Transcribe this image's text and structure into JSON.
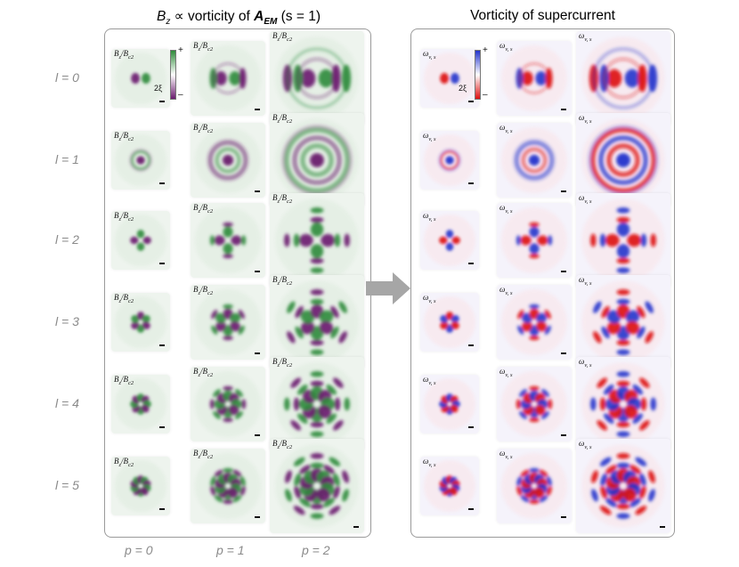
{
  "left_panel": {
    "title_var": "B",
    "title_sub": "z",
    "title_mid": " ∝ vorticity of ",
    "title_bold": "A",
    "title_bold_sub": "EM",
    "title_tail": " (s = 1)",
    "tile_label": "B",
    "tile_label_sub": "z",
    "tile_label_den": "/B",
    "tile_label_den_sub": "c2",
    "colorbar_plus": "+",
    "colorbar_minus": "–",
    "xi_label": "2ξ",
    "colors": {
      "positive": "#2e8b3a",
      "negative": "#6a1b6e"
    }
  },
  "right_panel": {
    "title": "Vorticity of supercurrent",
    "tile_label": "ω",
    "tile_label_sub": "v, s",
    "colorbar_plus": "+",
    "colorbar_minus": "–",
    "xi_label": "2ξ",
    "colors": {
      "positive": "#2233cc",
      "negative": "#dd1111"
    }
  },
  "rows": [
    "l = 0",
    "l = 1",
    "l = 2",
    "l = 3",
    "l = 4",
    "l = 5"
  ],
  "row_l_values": [
    0,
    1,
    2,
    3,
    4,
    5
  ],
  "columns": [
    "p = 0",
    "p = 1",
    "p = 2"
  ],
  "column_p_values": [
    0,
    1,
    2
  ],
  "arrow_color": "#a6a6a6"
}
